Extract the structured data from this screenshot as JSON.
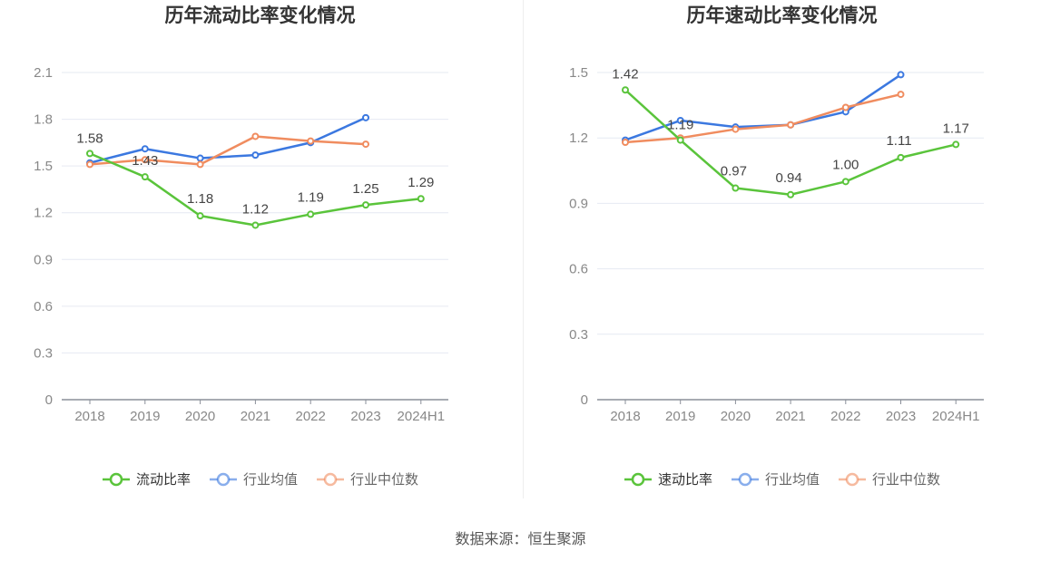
{
  "source_text": "数据来源：恒生聚源",
  "chart_data": [
    {
      "type": "line",
      "title": "历年流动比率变化情况",
      "categories": [
        "2018",
        "2019",
        "2020",
        "2021",
        "2022",
        "2023",
        "2024H1"
      ],
      "ylim": [
        0,
        2.1
      ],
      "yticks": [
        "0",
        "0.3",
        "0.6",
        "0.9",
        "1.2",
        "1.5",
        "1.8",
        "2.1"
      ],
      "grid": true,
      "legend_position": "bottom",
      "series": [
        {
          "name": "流动比率",
          "color": "#5ac43b",
          "values": [
            1.58,
            1.43,
            1.18,
            1.12,
            1.19,
            1.25,
            1.29
          ],
          "labels": [
            "1.58",
            "1.43",
            "1.18",
            "1.12",
            "1.19",
            "1.25",
            "1.29"
          ]
        },
        {
          "name": "行业均值",
          "color": "#3b78e0",
          "values": [
            1.52,
            1.61,
            1.55,
            1.57,
            1.65,
            1.81,
            null
          ]
        },
        {
          "name": "行业中位数",
          "color": "#f08c5f",
          "values": [
            1.51,
            1.54,
            1.51,
            1.69,
            1.66,
            1.64,
            null
          ]
        }
      ]
    },
    {
      "type": "line",
      "title": "历年速动比率变化情况",
      "categories": [
        "2018",
        "2019",
        "2020",
        "2021",
        "2022",
        "2023",
        "2024H1"
      ],
      "ylim": [
        0,
        1.5
      ],
      "yticks": [
        "0",
        "0.3",
        "0.6",
        "0.9",
        "1.2",
        "1.5"
      ],
      "grid": true,
      "legend_position": "bottom",
      "series": [
        {
          "name": "速动比率",
          "color": "#5ac43b",
          "values": [
            1.42,
            1.19,
            0.97,
            0.94,
            1.0,
            1.11,
            1.17
          ],
          "labels": [
            "1.42",
            "1.19",
            "0.97",
            "0.94",
            "1.00",
            "1.11",
            "1.17"
          ]
        },
        {
          "name": "行业均值",
          "color": "#3b78e0",
          "values": [
            1.19,
            1.28,
            1.25,
            1.26,
            1.32,
            1.49,
            null
          ]
        },
        {
          "name": "行业中位数",
          "color": "#f08c5f",
          "values": [
            1.18,
            1.2,
            1.24,
            1.26,
            1.34,
            1.4,
            null
          ]
        }
      ]
    }
  ]
}
